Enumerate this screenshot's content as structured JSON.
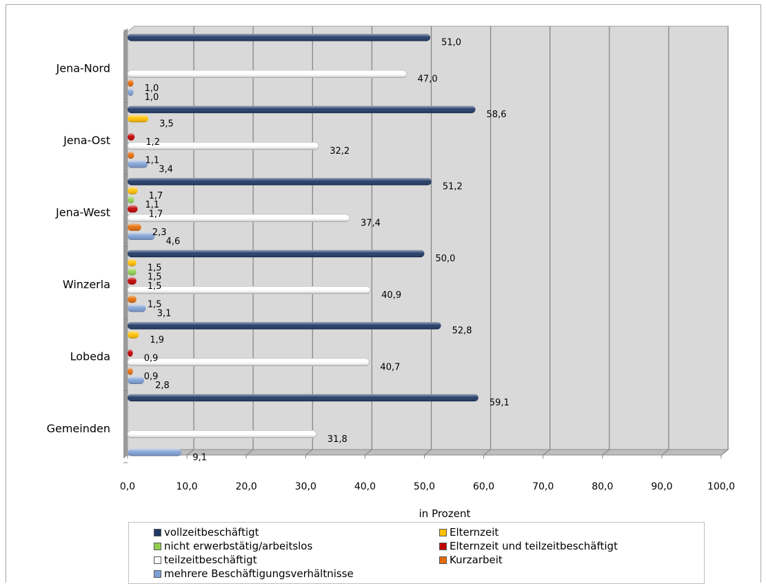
{
  "chart_data": {
    "type": "bar",
    "orientation": "horizontal",
    "categories": [
      "Jena-Nord",
      "Jena-Ost",
      "Jena-West",
      "Winzerla",
      "Lobeda",
      "Gemeinden"
    ],
    "xlabel": "in Prozent",
    "xlim": [
      0,
      100
    ],
    "xticks": [
      "0,0",
      "10,0",
      "20,0",
      "30,0",
      "40,0",
      "50,0",
      "60,0",
      "70,0",
      "80,0",
      "90,0",
      "100,0"
    ],
    "grid": "vertical",
    "legend_position": "bottom",
    "series": [
      {
        "name": "vollzeitbeschäftigt",
        "color": "#1f3864",
        "values": [
          51.0,
          58.6,
          51.2,
          50.0,
          52.8,
          59.1
        ],
        "labels": [
          "51,0",
          "58,6",
          "51,2",
          "50,0",
          "52,8",
          "59,1"
        ]
      },
      {
        "name": "Elternzeit",
        "color": "#ffc000",
        "values": [
          null,
          3.5,
          1.7,
          1.5,
          1.9,
          null
        ],
        "labels": [
          null,
          "3,5",
          "1,7",
          "1,5",
          "1,9",
          null
        ]
      },
      {
        "name": "nicht erwerbstätig/arbeitslos",
        "color": "#92d050",
        "values": [
          null,
          null,
          1.1,
          1.5,
          null,
          null
        ],
        "labels": [
          null,
          null,
          "1,1",
          "1,5",
          null,
          null
        ]
      },
      {
        "name": "Elternzeit und teilzeitbeschäftigt",
        "color": "#c00000",
        "values": [
          null,
          1.2,
          1.7,
          1.5,
          0.9,
          null
        ],
        "labels": [
          null,
          "1,2",
          "1,7",
          "1,5",
          "0,9",
          null
        ]
      },
      {
        "name": "teilzeitbeschäftigt",
        "color": "#ffffff",
        "values": [
          47.0,
          32.2,
          37.4,
          40.9,
          40.7,
          31.8
        ],
        "labels": [
          "47,0",
          "32,2",
          "37,4",
          "40,9",
          "40,7",
          "31,8"
        ]
      },
      {
        "name": "Kurzarbeit",
        "color": "#e46c0a",
        "values": [
          1.0,
          1.1,
          2.3,
          1.5,
          0.9,
          null
        ],
        "labels": [
          "1,0",
          "1,1",
          "2,3",
          "1,5",
          "0,9",
          null
        ]
      },
      {
        "name": "mehrere Beschäftigungsverhältnisse",
        "color": "#7f9fd5",
        "values": [
          1.0,
          3.4,
          4.6,
          3.1,
          2.8,
          9.1
        ],
        "labels": [
          "1,0",
          "3,4",
          "4,6",
          "3,1",
          "2,8",
          "9,1"
        ]
      }
    ]
  },
  "colors": {
    "plot_background": "#d9d9d9",
    "grid_line": "#808080",
    "teilzeit_outline": "#bfbfbf"
  }
}
